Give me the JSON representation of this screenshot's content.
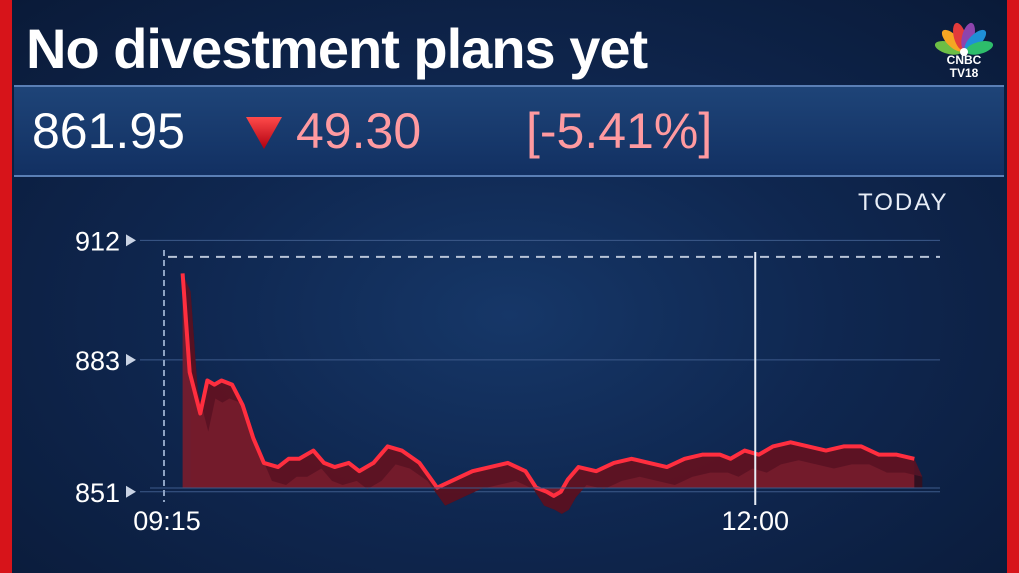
{
  "headline": "No divestment plans yet",
  "brand": {
    "name": "CNBC",
    "sub": "TV18"
  },
  "ticker": {
    "price": "861.95",
    "change": "49.30",
    "change_pct": "[-5.41%]",
    "direction": "down",
    "down_color": "#ff9aa0"
  },
  "period_label": "TODAY",
  "chart_data": {
    "type": "area",
    "title": "",
    "xlabel": "",
    "ylabel": "",
    "yticks": [
      912,
      883,
      851
    ],
    "ytick_labels": [
      "912",
      "883",
      "851"
    ],
    "xtick_labels": [
      "09:15",
      "12:00"
    ],
    "xlim_minutes": [
      0,
      215
    ],
    "ylim": [
      849,
      915
    ],
    "reference_line": 908,
    "cursor_x_minutes": 165,
    "line_color": "#ff2e3f",
    "fill_color": "#7a1d2c",
    "series": [
      {
        "name": "",
        "x_minutes": [
          3,
          5,
          8,
          10,
          12,
          14,
          17,
          20,
          23,
          26,
          30,
          33,
          36,
          40,
          43,
          46,
          50,
          53,
          57,
          61,
          65,
          70,
          75,
          80,
          85,
          90,
          95,
          100,
          103,
          106,
          108,
          110,
          112,
          115,
          120,
          125,
          130,
          135,
          140,
          145,
          150,
          155,
          158,
          162,
          166,
          170,
          175,
          180,
          185,
          190,
          195,
          200,
          205,
          210
        ],
        "values": [
          904,
          880,
          870,
          878,
          877,
          878,
          877,
          872,
          864,
          858,
          857,
          859,
          859,
          861,
          858,
          857,
          858,
          856,
          858,
          862,
          861,
          858,
          852,
          854,
          856,
          857,
          858,
          856,
          852,
          851,
          850,
          851,
          854,
          857,
          856,
          858,
          859,
          858,
          857,
          859,
          860,
          860,
          859,
          861,
          860,
          862,
          863,
          862,
          861,
          862,
          862,
          860,
          860,
          859
        ]
      }
    ]
  }
}
